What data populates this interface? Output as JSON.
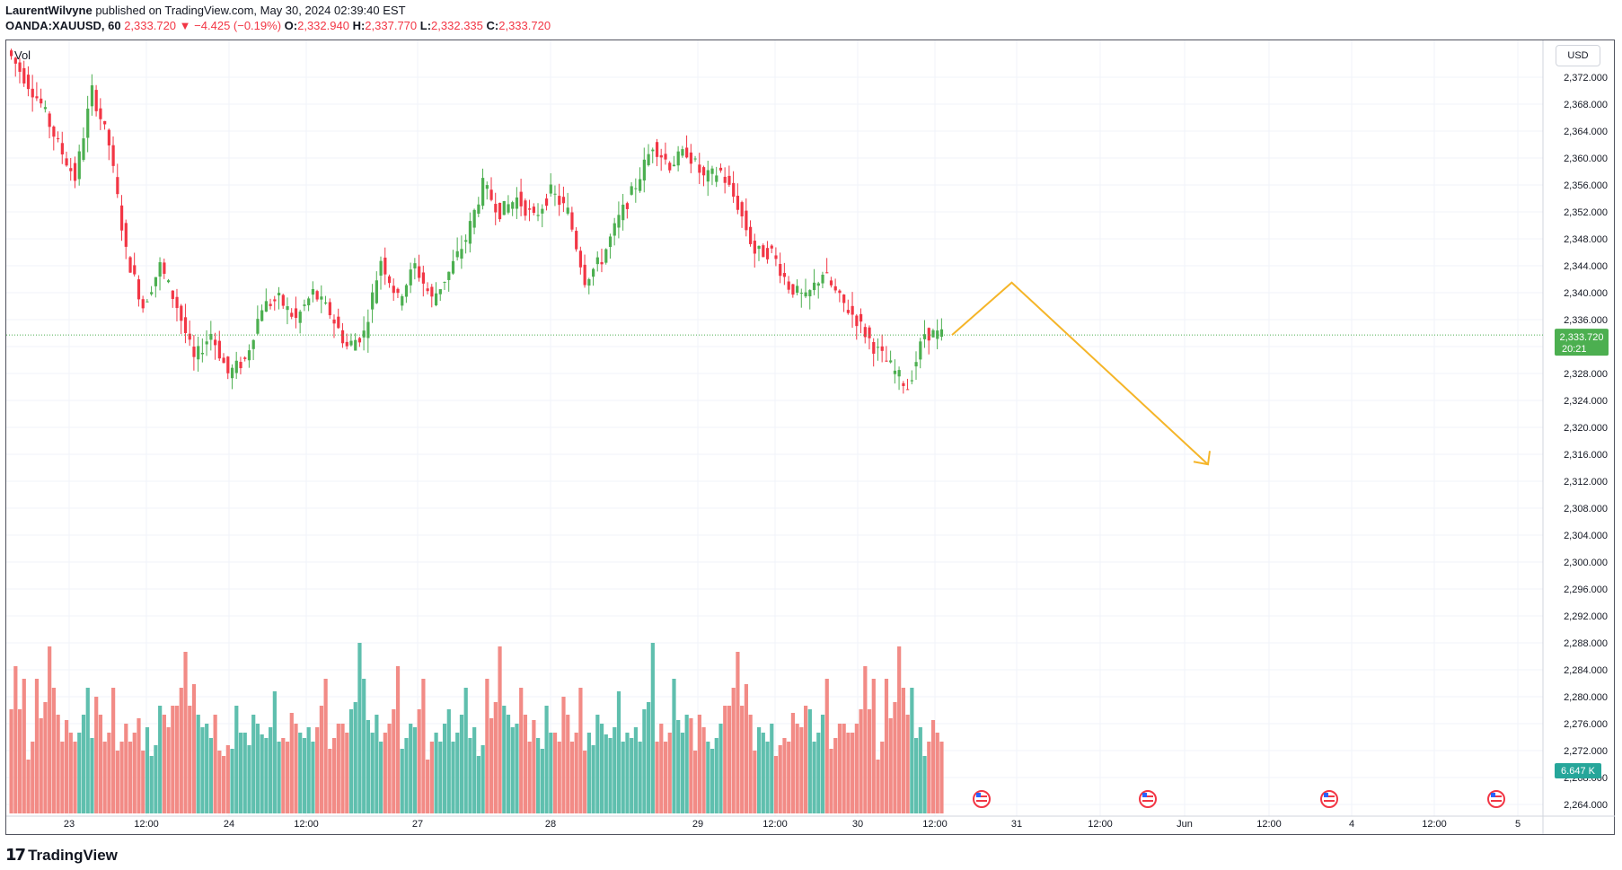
{
  "header": {
    "publisher": "LaurentWilvyne",
    "published_text": "published on TradingView.com, May 30, 2024 02:39:40 EST",
    "symbol": "OANDA:XAUUSD, 60",
    "price": "2,333.720",
    "change_icon": "triangle-down-icon",
    "change": "−4.425 (−0.19%)",
    "o_label": "O:",
    "o": "2,332.940",
    "h_label": "H:",
    "h": "2,337.770",
    "l_label": "L:",
    "l": "2,332.335",
    "c_label": "C:",
    "c": "2,333.720"
  },
  "vol_label": "Vol",
  "currency": "USD",
  "logo_text": "TradingView",
  "colors": {
    "up": "#26a69a",
    "up_candle": "#4caf50",
    "down": "#f23645",
    "vol_up": "#5fbfae",
    "vol_down": "#f28b86",
    "arrow": "#f5b529",
    "grid": "#f0f3fa"
  },
  "chart_data": {
    "type": "candlestick",
    "y_ticks": [
      "2,372.000",
      "2,368.000",
      "2,364.000",
      "2,360.000",
      "2,356.000",
      "2,352.000",
      "2,348.000",
      "2,344.000",
      "2,340.000",
      "2,336.000",
      "2,332.000",
      "2,328.000",
      "2,324.000",
      "2,320.000",
      "2,316.000",
      "2,312.000",
      "2,308.000",
      "2,304.000",
      "2,300.000",
      "2,296.000",
      "2,292.000",
      "2,288.000",
      "2,284.000",
      "2,280.000",
      "2,276.000",
      "2,272.000",
      "2,268.000",
      "2,264.000"
    ],
    "x_ticks": [
      "23",
      "12:00",
      "24",
      "12:00",
      "27",
      "28",
      "29",
      "12:00",
      "30",
      "12:00",
      "31",
      "12:00",
      "Jun",
      "12:00",
      "4",
      "12:00",
      "5"
    ],
    "current_price_label": "2,333.720",
    "countdown": "20:21",
    "volume_label": "6.647 K",
    "event_icons": [
      "us-flag-icon",
      "us-flag-icon",
      "us-flag-icon",
      "us-flag-icon"
    ],
    "price_path": [
      2376,
      2372,
      2368,
      2362,
      2357,
      2370,
      2362,
      2346,
      2338,
      2344,
      2338,
      2330,
      2334,
      2328,
      2330,
      2338,
      2339,
      2336,
      2340,
      2337,
      2332,
      2334,
      2345,
      2339,
      2344,
      2339,
      2343,
      2348,
      2356,
      2352,
      2354,
      2351,
      2355,
      2352,
      2342,
      2345,
      2351,
      2356,
      2362,
      2359,
      2361,
      2357,
      2358,
      2353,
      2346,
      2346,
      2341,
      2339,
      2343,
      2339,
      2336,
      2332,
      2329,
      2326,
      2334,
      2333.72
    ],
    "path_positions": [
      0,
      4,
      8,
      12,
      16,
      20,
      24,
      28,
      32,
      36,
      40,
      44,
      48,
      52,
      56,
      60,
      64,
      68,
      72,
      76,
      80,
      84,
      88,
      92,
      96,
      100,
      104,
      108,
      112,
      116,
      120,
      124,
      128,
      132,
      136,
      140,
      144,
      148,
      152,
      156,
      160,
      164,
      168,
      172,
      176,
      180,
      184,
      188,
      192,
      196,
      200,
      204,
      208,
      212,
      216,
      220
    ],
    "candle_count": 220,
    "volume_down": [
      58,
      82,
      58,
      75,
      30,
      40,
      75,
      53,
      62,
      93,
      70,
      55,
      40,
      52,
      45,
      40,
      65,
      55,
      40,
      45,
      70,
      35,
      40,
      50,
      40,
      45,
      53,
      35,
      55,
      48,
      60,
      60,
      70,
      90,
      60,
      72,
      55,
      35,
      32,
      38,
      42,
      40,
      56,
      50,
      48,
      60,
      75,
      36,
      42,
      50,
      50,
      45,
      45,
      50
    ],
    "volume_up": [
      45,
      55,
      70,
      42,
      48,
      32,
      38,
      60,
      55,
      48,
      50,
      42,
      36,
      60,
      45,
      45,
      38,
      55,
      50,
      44,
      42,
      48,
      68,
      40,
      45,
      42,
      48,
      40,
      58,
      62,
      95,
      75,
      52,
      45,
      55,
      40,
      36,
      42,
      50,
      48,
      45,
      40,
      50,
      58,
      40
    ],
    "forecast_arrow": [
      [
        2333.72,
        0
      ],
      [
        2341.5,
        7
      ],
      [
        2314.5,
        30
      ]
    ]
  }
}
